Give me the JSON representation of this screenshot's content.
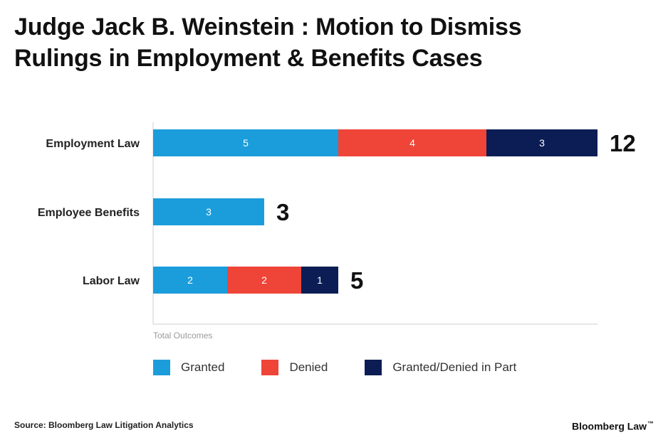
{
  "title_lines": [
    "Judge Jack B. Weinstein : Motion to Dismiss",
    "Rulings in Employment & Benefits Cases"
  ],
  "colors": {
    "granted": "#1B9DDB",
    "denied": "#EF4438",
    "partial": "#0B1D54",
    "axis": "#cfcfcf",
    "label": "#222222"
  },
  "chart_data": {
    "type": "bar",
    "orientation": "horizontal",
    "stacked": true,
    "title": "Judge Jack B. Weinstein : Motion to Dismiss Rulings in Employment & Benefits Cases",
    "xlabel": "Total Outcomes",
    "ylabel": "",
    "xlim": [
      0,
      12
    ],
    "categories": [
      "Employment Law",
      "Employee Benefits",
      "Labor Law"
    ],
    "series": [
      {
        "name": "Granted",
        "color": "#1B9DDB",
        "values": [
          5,
          3,
          2
        ]
      },
      {
        "name": "Denied",
        "color": "#EF4438",
        "values": [
          4,
          0,
          2
        ]
      },
      {
        "name": "Granted/Denied in Part",
        "color": "#0B1D54",
        "values": [
          3,
          0,
          1
        ]
      }
    ],
    "totals": [
      12,
      3,
      5
    ],
    "legend_position": "bottom-left"
  },
  "legend": [
    {
      "label": "Granted",
      "color": "#1B9DDB"
    },
    {
      "label": "Denied",
      "color": "#EF4438"
    },
    {
      "label": "Granted/Denied in Part",
      "color": "#0B1D54"
    }
  ],
  "footer": {
    "source": "Source: Bloomberg Law Litigation Analytics",
    "brand": "Bloomberg Law",
    "brand_mark": "™"
  }
}
